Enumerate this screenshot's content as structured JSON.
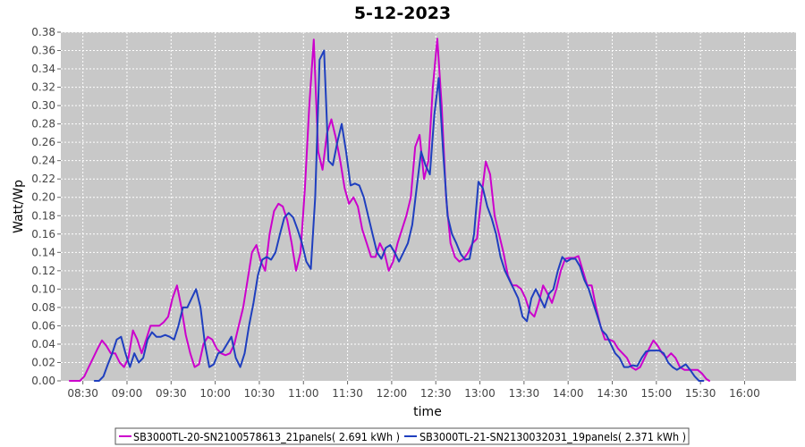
{
  "chart_data": {
    "type": "line",
    "title": "5-12-2023",
    "xlabel": "time",
    "ylabel": "Watt/Wp",
    "x_ticks": [
      "08:30",
      "09:00",
      "09:30",
      "10:00",
      "10:30",
      "11:00",
      "11:30",
      "12:00",
      "12:30",
      "13:00",
      "13:30",
      "14:00",
      "14:30",
      "15:00",
      "15:30",
      "16:00"
    ],
    "ylim": [
      0,
      0.38
    ],
    "y_ticks": [
      "0.00",
      "0.02",
      "0.04",
      "0.06",
      "0.08",
      "0.10",
      "0.12",
      "0.14",
      "0.16",
      "0.18",
      "0.20",
      "0.22",
      "0.24",
      "0.26",
      "0.28",
      "0.30",
      "0.32",
      "0.34",
      "0.36",
      "0.38"
    ],
    "xlim": [
      "08:15",
      "16:35"
    ],
    "grid": true,
    "legend_position": "bottom",
    "series": [
      {
        "name": "SB3000TL-20-SN2100578613_21panels( 2.691 kWh )",
        "color": "#cc00cc",
        "points": [
          [
            "08:21",
            0.0
          ],
          [
            "08:25",
            0.0
          ],
          [
            "08:28",
            0.0
          ],
          [
            "08:31",
            0.005
          ],
          [
            "08:34",
            0.015
          ],
          [
            "08:37",
            0.025
          ],
          [
            "08:40",
            0.035
          ],
          [
            "08:43",
            0.044
          ],
          [
            "08:46",
            0.038
          ],
          [
            "08:49",
            0.03
          ],
          [
            "08:52",
            0.03
          ],
          [
            "08:55",
            0.02
          ],
          [
            "08:58",
            0.015
          ],
          [
            "09:01",
            0.025
          ],
          [
            "09:04",
            0.055
          ],
          [
            "09:07",
            0.045
          ],
          [
            "09:10",
            0.03
          ],
          [
            "09:13",
            0.045
          ],
          [
            "09:16",
            0.06
          ],
          [
            "09:19",
            0.06
          ],
          [
            "09:22",
            0.06
          ],
          [
            "09:25",
            0.064
          ],
          [
            "09:28",
            0.07
          ],
          [
            "09:31",
            0.09
          ],
          [
            "09:34",
            0.104
          ],
          [
            "09:37",
            0.08
          ],
          [
            "09:40",
            0.05
          ],
          [
            "09:43",
            0.03
          ],
          [
            "09:46",
            0.015
          ],
          [
            "09:49",
            0.018
          ],
          [
            "09:52",
            0.04
          ],
          [
            "09:55",
            0.048
          ],
          [
            "09:58",
            0.045
          ],
          [
            "10:01",
            0.035
          ],
          [
            "10:04",
            0.03
          ],
          [
            "10:07",
            0.028
          ],
          [
            "10:10",
            0.03
          ],
          [
            "10:13",
            0.04
          ],
          [
            "10:16",
            0.06
          ],
          [
            "10:19",
            0.08
          ],
          [
            "10:22",
            0.11
          ],
          [
            "10:25",
            0.14
          ],
          [
            "10:28",
            0.148
          ],
          [
            "10:31",
            0.13
          ],
          [
            "10:34",
            0.12
          ],
          [
            "10:37",
            0.16
          ],
          [
            "10:40",
            0.185
          ],
          [
            "10:43",
            0.193
          ],
          [
            "10:46",
            0.19
          ],
          [
            "10:49",
            0.175
          ],
          [
            "10:52",
            0.15
          ],
          [
            "10:55",
            0.12
          ],
          [
            "10:58",
            0.14
          ],
          [
            "11:01",
            0.21
          ],
          [
            "11:04",
            0.3
          ],
          [
            "11:07",
            0.372
          ],
          [
            "11:10",
            0.25
          ],
          [
            "11:13",
            0.23
          ],
          [
            "11:16",
            0.27
          ],
          [
            "11:19",
            0.285
          ],
          [
            "11:22",
            0.265
          ],
          [
            "11:25",
            0.24
          ],
          [
            "11:28",
            0.21
          ],
          [
            "11:31",
            0.193
          ],
          [
            "11:34",
            0.2
          ],
          [
            "11:37",
            0.19
          ],
          [
            "11:40",
            0.165
          ],
          [
            "11:43",
            0.15
          ],
          [
            "11:46",
            0.135
          ],
          [
            "11:49",
            0.135
          ],
          [
            "11:52",
            0.15
          ],
          [
            "11:55",
            0.14
          ],
          [
            "11:58",
            0.12
          ],
          [
            "12:01",
            0.13
          ],
          [
            "12:04",
            0.15
          ],
          [
            "12:07",
            0.165
          ],
          [
            "12:10",
            0.18
          ],
          [
            "12:13",
            0.2
          ],
          [
            "12:16",
            0.255
          ],
          [
            "12:19",
            0.268
          ],
          [
            "12:22",
            0.22
          ],
          [
            "12:25",
            0.24
          ],
          [
            "12:28",
            0.32
          ],
          [
            "12:31",
            0.373
          ],
          [
            "12:34",
            0.3
          ],
          [
            "12:37",
            0.2
          ],
          [
            "12:40",
            0.15
          ],
          [
            "12:43",
            0.135
          ],
          [
            "12:46",
            0.13
          ],
          [
            "12:49",
            0.133
          ],
          [
            "12:52",
            0.14
          ],
          [
            "12:55",
            0.15
          ],
          [
            "12:58",
            0.155
          ],
          [
            "13:01",
            0.2
          ],
          [
            "13:04",
            0.239
          ],
          [
            "13:07",
            0.225
          ],
          [
            "13:10",
            0.18
          ],
          [
            "13:13",
            0.16
          ],
          [
            "13:16",
            0.14
          ],
          [
            "13:19",
            0.115
          ],
          [
            "13:22",
            0.104
          ],
          [
            "13:25",
            0.104
          ],
          [
            "13:28",
            0.1
          ],
          [
            "13:31",
            0.09
          ],
          [
            "13:34",
            0.075
          ],
          [
            "13:37",
            0.07
          ],
          [
            "13:40",
            0.085
          ],
          [
            "13:43",
            0.104
          ],
          [
            "13:46",
            0.095
          ],
          [
            "13:49",
            0.085
          ],
          [
            "13:52",
            0.1
          ],
          [
            "13:55",
            0.12
          ],
          [
            "13:58",
            0.133
          ],
          [
            "14:01",
            0.134
          ],
          [
            "14:04",
            0.134
          ],
          [
            "14:07",
            0.136
          ],
          [
            "14:10",
            0.12
          ],
          [
            "14:13",
            0.104
          ],
          [
            "14:16",
            0.104
          ],
          [
            "14:19",
            0.08
          ],
          [
            "14:22",
            0.06
          ],
          [
            "14:25",
            0.045
          ],
          [
            "14:28",
            0.045
          ],
          [
            "14:31",
            0.043
          ],
          [
            "14:34",
            0.035
          ],
          [
            "14:37",
            0.03
          ],
          [
            "14:40",
            0.025
          ],
          [
            "14:43",
            0.015
          ],
          [
            "14:46",
            0.012
          ],
          [
            "14:49",
            0.015
          ],
          [
            "14:52",
            0.025
          ],
          [
            "14:55",
            0.035
          ],
          [
            "14:58",
            0.044
          ],
          [
            "15:01",
            0.038
          ],
          [
            "15:04",
            0.03
          ],
          [
            "15:07",
            0.025
          ],
          [
            "15:10",
            0.03
          ],
          [
            "15:13",
            0.025
          ],
          [
            "15:16",
            0.015
          ],
          [
            "15:19",
            0.012
          ],
          [
            "15:22",
            0.012
          ],
          [
            "15:25",
            0.012
          ],
          [
            "15:28",
            0.012
          ],
          [
            "15:31",
            0.008
          ],
          [
            "15:34",
            0.002
          ],
          [
            "15:36",
            0.0
          ]
        ]
      },
      {
        "name": "SB3000TL-21-SN2130032031_19panels( 2.371 kWh )",
        "color": "#1f3fbf",
        "points": [
          [
            "08:38",
            0.0
          ],
          [
            "08:41",
            0.0
          ],
          [
            "08:44",
            0.005
          ],
          [
            "08:47",
            0.018
          ],
          [
            "08:50",
            0.03
          ],
          [
            "08:53",
            0.045
          ],
          [
            "08:56",
            0.048
          ],
          [
            "08:59",
            0.03
          ],
          [
            "09:02",
            0.015
          ],
          [
            "09:05",
            0.03
          ],
          [
            "09:08",
            0.02
          ],
          [
            "09:11",
            0.025
          ],
          [
            "09:14",
            0.045
          ],
          [
            "09:17",
            0.053
          ],
          [
            "09:20",
            0.048
          ],
          [
            "09:23",
            0.048
          ],
          [
            "09:26",
            0.05
          ],
          [
            "09:29",
            0.048
          ],
          [
            "09:32",
            0.045
          ],
          [
            "09:35",
            0.06
          ],
          [
            "09:38",
            0.08
          ],
          [
            "09:41",
            0.08
          ],
          [
            "09:44",
            0.09
          ],
          [
            "09:47",
            0.1
          ],
          [
            "09:50",
            0.08
          ],
          [
            "09:53",
            0.04
          ],
          [
            "09:56",
            0.015
          ],
          [
            "09:59",
            0.018
          ],
          [
            "10:02",
            0.03
          ],
          [
            "10:05",
            0.032
          ],
          [
            "10:08",
            0.04
          ],
          [
            "10:11",
            0.048
          ],
          [
            "10:14",
            0.025
          ],
          [
            "10:17",
            0.015
          ],
          [
            "10:20",
            0.03
          ],
          [
            "10:23",
            0.06
          ],
          [
            "10:26",
            0.085
          ],
          [
            "10:29",
            0.115
          ],
          [
            "10:32",
            0.132
          ],
          [
            "10:35",
            0.135
          ],
          [
            "10:38",
            0.132
          ],
          [
            "10:41",
            0.14
          ],
          [
            "10:44",
            0.16
          ],
          [
            "10:47",
            0.178
          ],
          [
            "10:50",
            0.183
          ],
          [
            "10:53",
            0.178
          ],
          [
            "10:56",
            0.165
          ],
          [
            "10:59",
            0.15
          ],
          [
            "11:02",
            0.13
          ],
          [
            "11:05",
            0.122
          ],
          [
            "11:08",
            0.2
          ],
          [
            "11:11",
            0.35
          ],
          [
            "11:14",
            0.36
          ],
          [
            "11:17",
            0.24
          ],
          [
            "11:20",
            0.235
          ],
          [
            "11:23",
            0.26
          ],
          [
            "11:26",
            0.28
          ],
          [
            "11:29",
            0.25
          ],
          [
            "11:32",
            0.213
          ],
          [
            "11:35",
            0.215
          ],
          [
            "11:38",
            0.213
          ],
          [
            "11:41",
            0.2
          ],
          [
            "11:44",
            0.18
          ],
          [
            "11:47",
            0.16
          ],
          [
            "11:50",
            0.14
          ],
          [
            "11:53",
            0.133
          ],
          [
            "11:56",
            0.145
          ],
          [
            "11:59",
            0.148
          ],
          [
            "12:02",
            0.14
          ],
          [
            "12:05",
            0.13
          ],
          [
            "12:08",
            0.14
          ],
          [
            "12:11",
            0.15
          ],
          [
            "12:14",
            0.17
          ],
          [
            "12:17",
            0.21
          ],
          [
            "12:20",
            0.25
          ],
          [
            "12:23",
            0.235
          ],
          [
            "12:26",
            0.225
          ],
          [
            "12:29",
            0.29
          ],
          [
            "12:32",
            0.33
          ],
          [
            "12:35",
            0.25
          ],
          [
            "12:38",
            0.18
          ],
          [
            "12:41",
            0.16
          ],
          [
            "12:44",
            0.15
          ],
          [
            "12:47",
            0.138
          ],
          [
            "12:50",
            0.132
          ],
          [
            "12:53",
            0.133
          ],
          [
            "12:56",
            0.16
          ],
          [
            "12:59",
            0.217
          ],
          [
            "13:02",
            0.21
          ],
          [
            "13:05",
            0.19
          ],
          [
            "13:08",
            0.177
          ],
          [
            "13:11",
            0.16
          ],
          [
            "13:14",
            0.135
          ],
          [
            "13:17",
            0.12
          ],
          [
            "13:20",
            0.11
          ],
          [
            "13:23",
            0.1
          ],
          [
            "13:26",
            0.09
          ],
          [
            "13:29",
            0.07
          ],
          [
            "13:32",
            0.065
          ],
          [
            "13:35",
            0.09
          ],
          [
            "13:38",
            0.1
          ],
          [
            "13:41",
            0.09
          ],
          [
            "13:44",
            0.08
          ],
          [
            "13:47",
            0.095
          ],
          [
            "13:50",
            0.1
          ],
          [
            "13:53",
            0.12
          ],
          [
            "13:56",
            0.135
          ],
          [
            "13:59",
            0.13
          ],
          [
            "14:02",
            0.133
          ],
          [
            "14:05",
            0.133
          ],
          [
            "14:08",
            0.125
          ],
          [
            "14:11",
            0.11
          ],
          [
            "14:14",
            0.1
          ],
          [
            "14:17",
            0.085
          ],
          [
            "14:20",
            0.07
          ],
          [
            "14:23",
            0.055
          ],
          [
            "14:26",
            0.05
          ],
          [
            "14:29",
            0.04
          ],
          [
            "14:32",
            0.03
          ],
          [
            "14:35",
            0.025
          ],
          [
            "14:38",
            0.015
          ],
          [
            "14:41",
            0.015
          ],
          [
            "14:44",
            0.017
          ],
          [
            "14:47",
            0.016
          ],
          [
            "14:50",
            0.025
          ],
          [
            "14:53",
            0.032
          ],
          [
            "14:56",
            0.033
          ],
          [
            "14:59",
            0.033
          ],
          [
            "15:02",
            0.033
          ],
          [
            "15:05",
            0.03
          ],
          [
            "15:08",
            0.02
          ],
          [
            "15:11",
            0.015
          ],
          [
            "15:14",
            0.012
          ],
          [
            "15:17",
            0.015
          ],
          [
            "15:20",
            0.018
          ],
          [
            "15:23",
            0.012
          ],
          [
            "15:26",
            0.005
          ],
          [
            "15:29",
            0.0
          ],
          [
            "15:32",
            0.0
          ]
        ]
      }
    ]
  }
}
